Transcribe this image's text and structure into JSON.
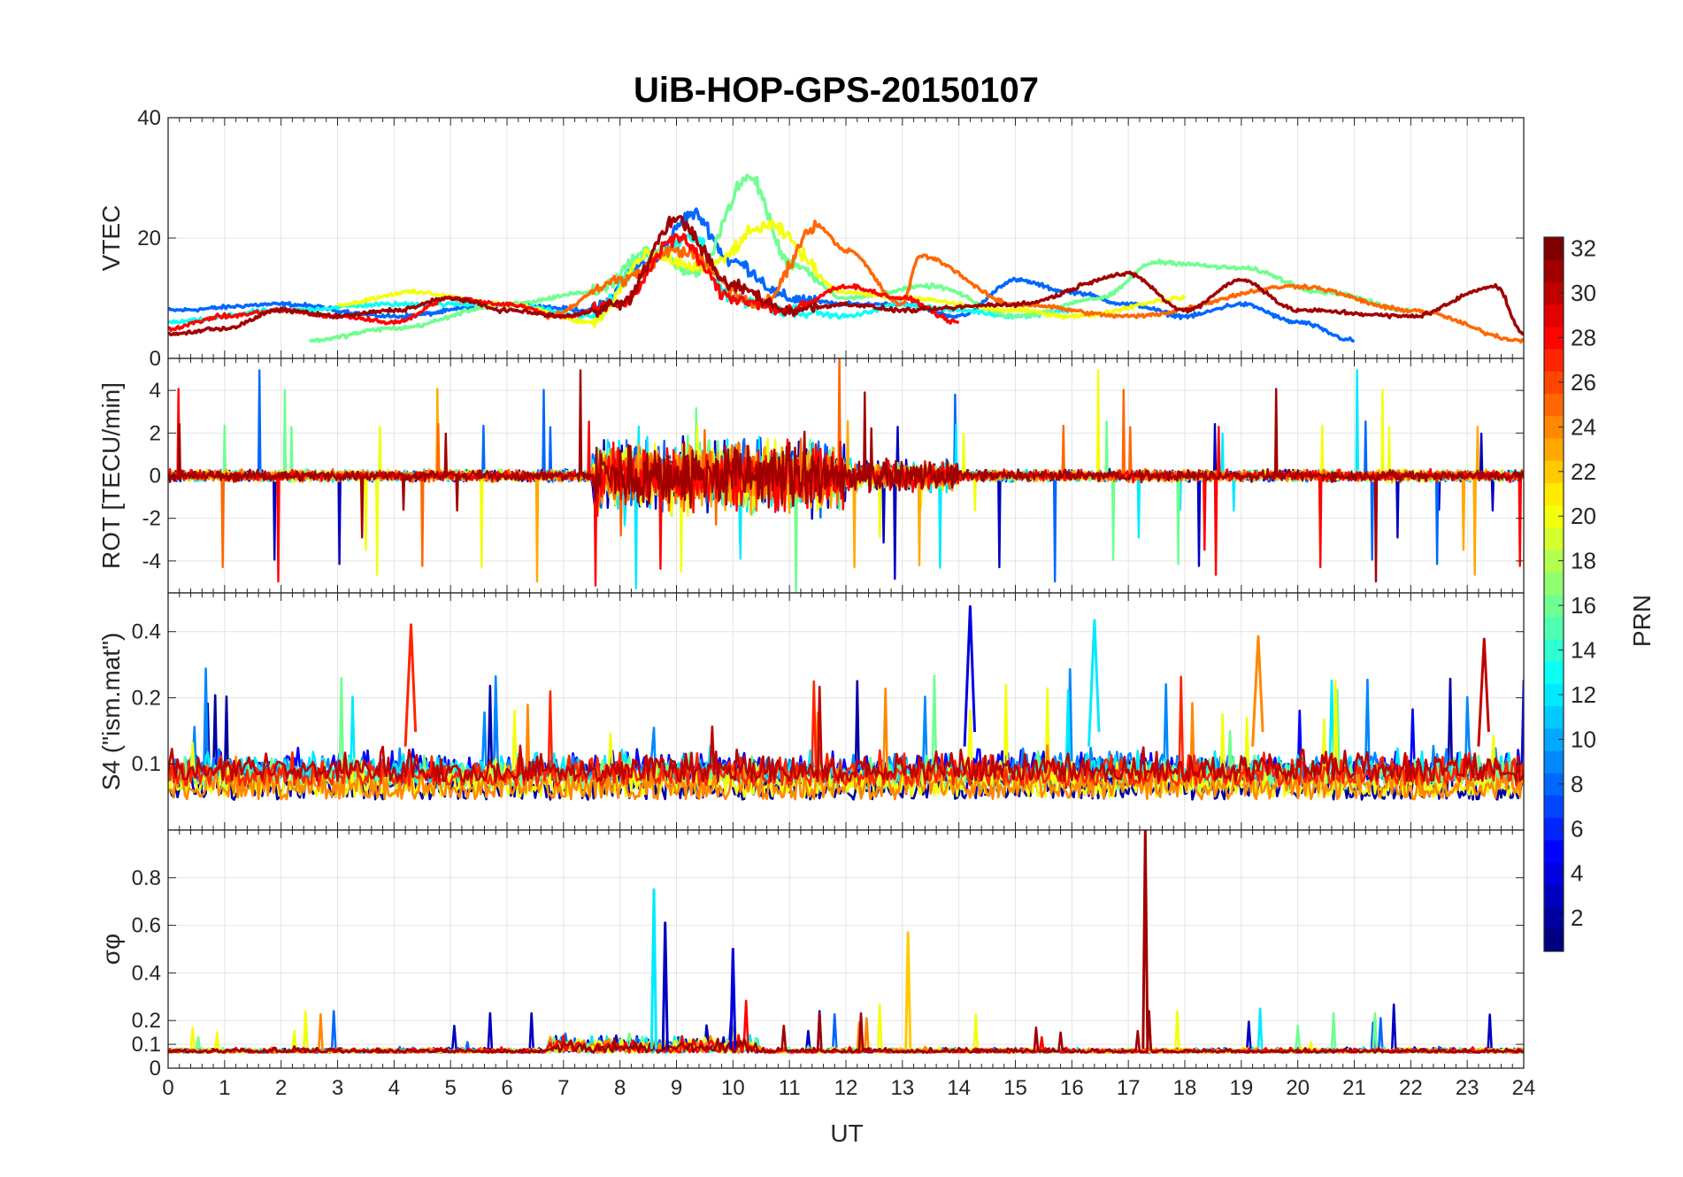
{
  "title": "UiB-HOP-GPS-20150107",
  "colorbar": {
    "label": "PRN",
    "range": [
      1,
      32
    ],
    "ticks": [
      2,
      4,
      6,
      8,
      10,
      12,
      14,
      16,
      18,
      20,
      22,
      24,
      26,
      28,
      30,
      32
    ],
    "colormap": "jet"
  },
  "chart_data": [
    {
      "type": "line",
      "panel": "VTEC",
      "ylabel": "VTEC",
      "ylim": [
        0,
        40
      ],
      "yticks": [
        0,
        20,
        40
      ],
      "xlim": [
        0,
        24
      ],
      "grid": true,
      "series": [
        {
          "prn": 8,
          "x": [
            0,
            2,
            4,
            6,
            7.5,
            8.5,
            9.3,
            10,
            11,
            12,
            13,
            14,
            15,
            16,
            17,
            18,
            19,
            20,
            21
          ],
          "y": [
            8,
            9,
            7,
            9,
            8,
            16,
            24,
            16,
            10,
            9,
            9,
            7,
            13,
            11,
            9,
            7,
            9,
            6,
            3
          ]
        },
        {
          "prn": 13,
          "x": [
            0,
            2,
            4,
            6,
            7.5,
            8.5,
            9.3,
            10,
            11,
            12,
            13,
            14,
            15,
            16
          ],
          "y": [
            6,
            8,
            9,
            9,
            7,
            17,
            20,
            10,
            8,
            7,
            9,
            8,
            7,
            8
          ]
        },
        {
          "prn": 16,
          "x": [
            2.5,
            4,
            6,
            7.5,
            8.6,
            9.3,
            10.3,
            11,
            12,
            13.5,
            15,
            16.5,
            17.5,
            19,
            20.5,
            22
          ],
          "y": [
            3,
            5,
            9,
            11,
            18,
            14,
            30,
            16,
            10,
            12,
            7,
            10,
            16,
            15,
            11,
            8
          ]
        },
        {
          "prn": 20,
          "x": [
            3,
            4.3,
            6,
            7.5,
            8.5,
            9.5,
            10.6,
            12,
            13,
            15,
            16,
            18
          ],
          "y": [
            9,
            11,
            9,
            6,
            17,
            15,
            22,
            11,
            10,
            8,
            7,
            10
          ]
        },
        {
          "prn": 25,
          "x": [
            6.7,
            8,
            9,
            10.5,
            11.5,
            12,
            13,
            13.3,
            15,
            17,
            20,
            22,
            24
          ],
          "y": [
            7,
            13,
            18,
            9,
            22,
            18,
            9,
            17,
            9,
            7,
            12,
            8,
            3
          ]
        },
        {
          "prn": 28,
          "x": [
            0,
            1,
            2,
            3,
            4,
            5,
            6,
            7,
            8,
            9,
            10,
            11,
            12,
            13,
            14
          ],
          "y": [
            5,
            7,
            8,
            7,
            6,
            10,
            9,
            7,
            9,
            20,
            10,
            8,
            12,
            10,
            6
          ]
        },
        {
          "prn": 31,
          "x": [
            0,
            1,
            2,
            3,
            4,
            5,
            6,
            7,
            8,
            9,
            10,
            11,
            12,
            13,
            15,
            17,
            18,
            19,
            20,
            22,
            23.5,
            24
          ],
          "y": [
            4,
            5,
            8,
            7,
            8,
            10,
            8,
            7,
            9,
            23,
            12,
            8,
            9,
            8,
            9,
            14,
            8,
            13,
            8,
            7,
            12,
            4
          ]
        }
      ]
    },
    {
      "type": "line",
      "panel": "ROT",
      "ylabel": "ROT [TECU/min]",
      "ylim": [
        -5.5,
        5.5
      ],
      "yticks": [
        -4,
        -2,
        0,
        2,
        4
      ],
      "xlim": [
        0,
        24
      ],
      "grid": true,
      "note": "rate of TEC, approx +/-0.5 quiet, strong spikes 7.5-12 UT"
    },
    {
      "type": "line",
      "panel": "S4",
      "ylabel": "S4 (\"ism.mat\")",
      "yscale": "log",
      "ylim": [
        0.05,
        0.6
      ],
      "yticks": [
        0.1,
        0.2,
        0.4
      ],
      "xlim": [
        0,
        24
      ],
      "grid": true,
      "peaks": [
        {
          "x": 4.3,
          "y": 0.43,
          "prn": 27
        },
        {
          "x": 14.2,
          "y": 0.52,
          "prn": 4
        },
        {
          "x": 16.4,
          "y": 0.45,
          "prn": 12
        },
        {
          "x": 19.3,
          "y": 0.38,
          "prn": 24
        },
        {
          "x": 23.3,
          "y": 0.37,
          "prn": 30
        }
      ]
    },
    {
      "type": "line",
      "panel": "sigma_phi",
      "ylabel": "σφ",
      "ylim": [
        0,
        1
      ],
      "yticks": [
        0,
        0.1,
        0.2,
        0.4,
        0.6,
        0.8
      ],
      "xlim": [
        0,
        24
      ],
      "grid": true,
      "peaks": [
        {
          "x": 8.6,
          "y": 0.75,
          "prn": 12
        },
        {
          "x": 8.8,
          "y": 0.61,
          "prn": 3
        },
        {
          "x": 13.1,
          "y": 0.57,
          "prn": 22
        },
        {
          "x": 17.3,
          "y": 1.0,
          "prn": 31
        },
        {
          "x": 10,
          "y": 0.5,
          "prn": 4
        }
      ]
    }
  ],
  "xaxis": {
    "label": "UT",
    "ticks": [
      0,
      1,
      2,
      3,
      4,
      5,
      6,
      7,
      8,
      9,
      10,
      11,
      12,
      13,
      14,
      15,
      16,
      17,
      18,
      19,
      20,
      21,
      22,
      23,
      24
    ]
  }
}
